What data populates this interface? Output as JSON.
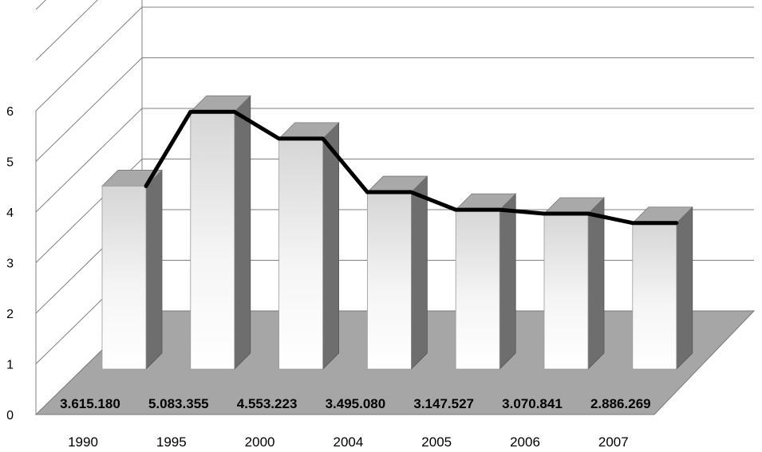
{
  "chart_data": {
    "type": "bar",
    "categories": [
      "1990",
      "1995",
      "2000",
      "2004",
      "2005",
      "2006",
      "2007"
    ],
    "values": [
      3.61518,
      5.083355,
      4.553223,
      3.49508,
      3.147527,
      3.070841,
      2.886269
    ],
    "data_labels": [
      "3.615.180",
      "5.083.355",
      "4.553.223",
      "3.495.080",
      "3.147.527",
      "3.070.841",
      "2.886.269"
    ],
    "y_ticks": [
      "0",
      "1",
      "2",
      "3",
      "4",
      "5",
      "6"
    ],
    "ylim": [
      0,
      8
    ],
    "title": "",
    "xlabel": "",
    "ylabel": "",
    "overlay_line": true,
    "grid": true,
    "style": "3d",
    "colors": {
      "bar_front": "#f2f2f2",
      "bar_side": "#6e6e6e",
      "bar_top": "#a9a9a9",
      "floor": "#a6a6a6",
      "line": "#000000",
      "grid": "#808080"
    }
  }
}
